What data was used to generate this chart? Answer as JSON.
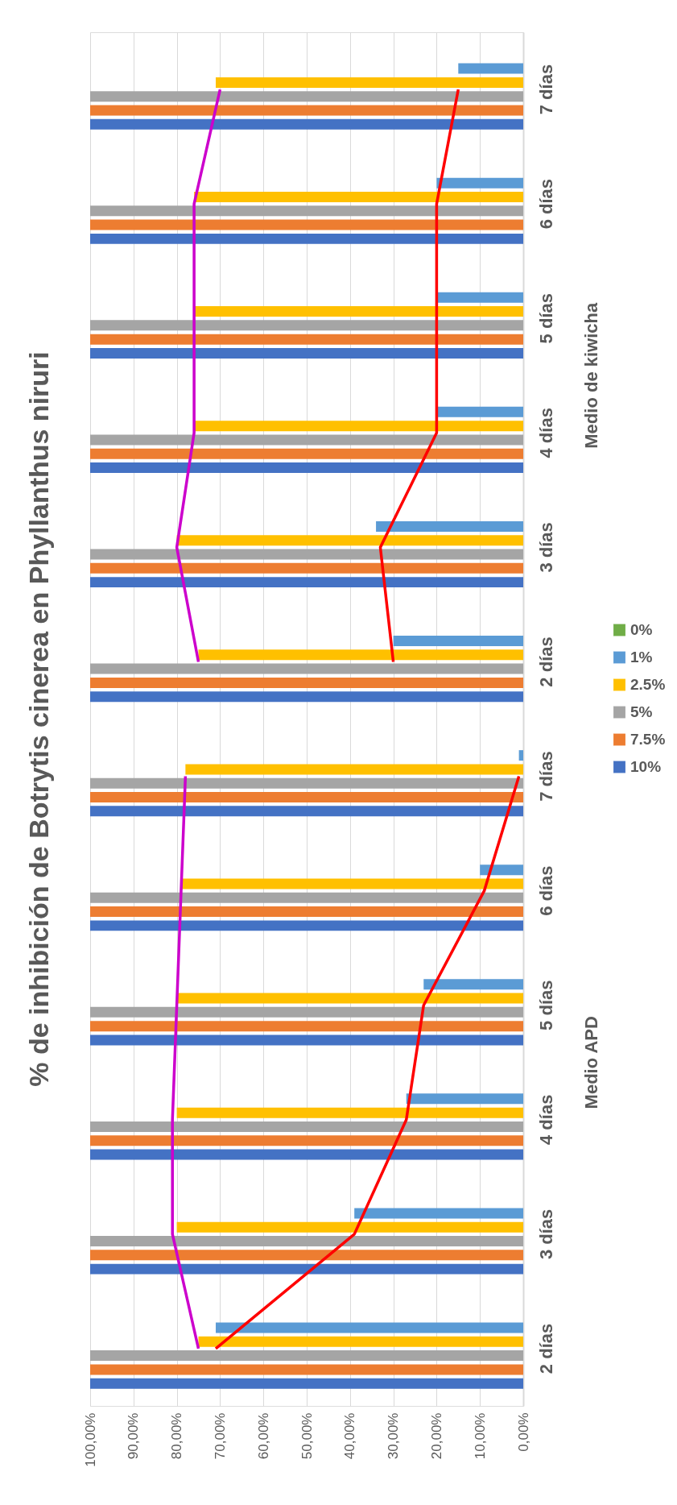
{
  "chart_data": {
    "type": "bar",
    "orientation": "horizontal",
    "title": "% de inhibición de Botrytis cinerea en Phyllanthus niruri",
    "categories": [
      "7 días",
      "6 días",
      "5 días",
      "4 días",
      "3 días",
      "2 días",
      "7 días",
      "6 días",
      "5 días",
      "4 días",
      "3 días",
      "2 días"
    ],
    "series": [
      {
        "name": "10%",
        "color": "#4472c4",
        "values": [
          100,
          100,
          100,
          100,
          100,
          100,
          100,
          100,
          100,
          100,
          100,
          100
        ]
      },
      {
        "name": "7.5%",
        "color": "#ed7d31",
        "values": [
          100,
          100,
          100,
          100,
          100,
          100,
          100,
          100,
          100,
          100,
          100,
          100
        ]
      },
      {
        "name": "5%",
        "color": "#a5a5a5",
        "values": [
          100,
          100,
          100,
          100,
          100,
          100,
          100,
          100,
          100,
          100,
          100,
          100
        ]
      },
      {
        "name": "2.5%",
        "color": "#ffc000",
        "values": [
          71,
          76,
          76,
          76,
          80,
          75,
          78,
          79,
          80,
          80,
          80,
          75
        ]
      },
      {
        "name": "1%",
        "color": "#5b9bd5",
        "values": [
          15,
          20,
          20,
          20,
          34,
          30,
          1,
          10,
          23,
          27,
          39,
          71
        ]
      },
      {
        "name": "0%",
        "color": "#70ad47",
        "values": [
          0,
          0,
          0,
          0,
          0,
          0,
          0,
          0,
          0,
          0,
          0,
          0
        ]
      },
      {
        "type": "line",
        "color": "#cc00cc",
        "values": [
          70,
          76,
          76,
          76,
          80,
          75,
          null,
          null,
          null,
          null,
          null,
          null
        ]
      },
      {
        "type": "line",
        "color": "#cc00cc",
        "values": [
          null,
          null,
          null,
          null,
          null,
          null,
          78,
          79,
          80,
          81,
          81,
          75
        ]
      },
      {
        "type": "line",
        "color": "#ff0000",
        "values": [
          15,
          20,
          20,
          20,
          33,
          30,
          null,
          null,
          null,
          null,
          null,
          null
        ]
      },
      {
        "type": "line",
        "color": "#ff0000",
        "values": [
          null,
          null,
          null,
          null,
          null,
          null,
          1,
          9,
          23,
          27,
          39,
          71
        ]
      }
    ],
    "annotations": [
      "Medio de kiwicha",
      "Medio APD"
    ],
    "xlim": [
      100,
      0
    ],
    "xticks": [
      {
        "value": 100,
        "label": "100,00%"
      },
      {
        "value": 90,
        "label": "90,00%"
      },
      {
        "value": 80,
        "label": "80,00%"
      },
      {
        "value": 70,
        "label": "70,00%"
      },
      {
        "value": 60,
        "label": "60,00%"
      },
      {
        "value": 50,
        "label": "50,00%"
      },
      {
        "value": 40,
        "label": "40,00%"
      },
      {
        "value": 30,
        "label": "30,00%"
      },
      {
        "value": 20,
        "label": "20,00%"
      },
      {
        "value": 10,
        "label": "10,00%"
      },
      {
        "value": 0,
        "label": "0,00%"
      }
    ],
    "grid": "x",
    "legend": "right"
  }
}
